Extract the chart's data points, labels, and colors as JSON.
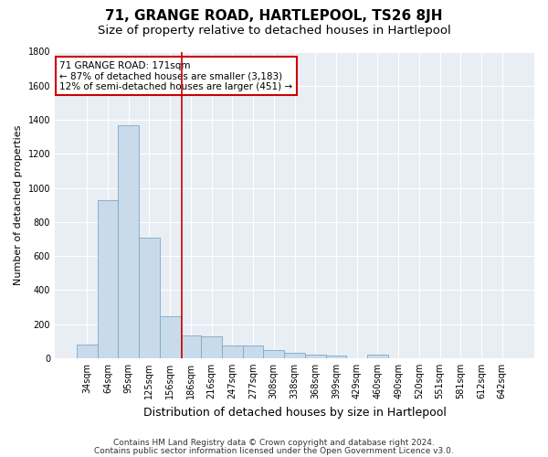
{
  "title": "71, GRANGE ROAD, HARTLEPOOL, TS26 8JH",
  "subtitle": "Size of property relative to detached houses in Hartlepool",
  "xlabel": "Distribution of detached houses by size in Hartlepool",
  "ylabel": "Number of detached properties",
  "categories": [
    "34sqm",
    "64sqm",
    "95sqm",
    "125sqm",
    "156sqm",
    "186sqm",
    "216sqm",
    "247sqm",
    "277sqm",
    "308sqm",
    "338sqm",
    "368sqm",
    "399sqm",
    "429sqm",
    "460sqm",
    "490sqm",
    "520sqm",
    "551sqm",
    "581sqm",
    "612sqm",
    "642sqm"
  ],
  "values": [
    80,
    930,
    1370,
    710,
    245,
    135,
    130,
    75,
    75,
    45,
    30,
    20,
    15,
    0,
    20,
    0,
    0,
    0,
    0,
    0,
    0
  ],
  "bar_color": "#c9daea",
  "bar_edge_color": "#7aaac8",
  "vline_color": "#cc0000",
  "vline_x": 4.57,
  "ylim": [
    0,
    1800
  ],
  "yticks": [
    0,
    200,
    400,
    600,
    800,
    1000,
    1200,
    1400,
    1600,
    1800
  ],
  "annotation_text": "71 GRANGE ROAD: 171sqm\n← 87% of detached houses are smaller (3,183)\n12% of semi-detached houses are larger (451) →",
  "annotation_box_color": "#ffffff",
  "annotation_box_edge": "#cc0000",
  "footnote1": "Contains HM Land Registry data © Crown copyright and database right 2024.",
  "footnote2": "Contains public sector information licensed under the Open Government Licence v3.0.",
  "fig_bg_color": "#ffffff",
  "plot_bg_color": "#e8eef4",
  "grid_color": "#ffffff",
  "title_fontsize": 11,
  "subtitle_fontsize": 9.5,
  "xlabel_fontsize": 9,
  "ylabel_fontsize": 8,
  "tick_fontsize": 7,
  "annotation_fontsize": 7.5,
  "footnote_fontsize": 6.5
}
